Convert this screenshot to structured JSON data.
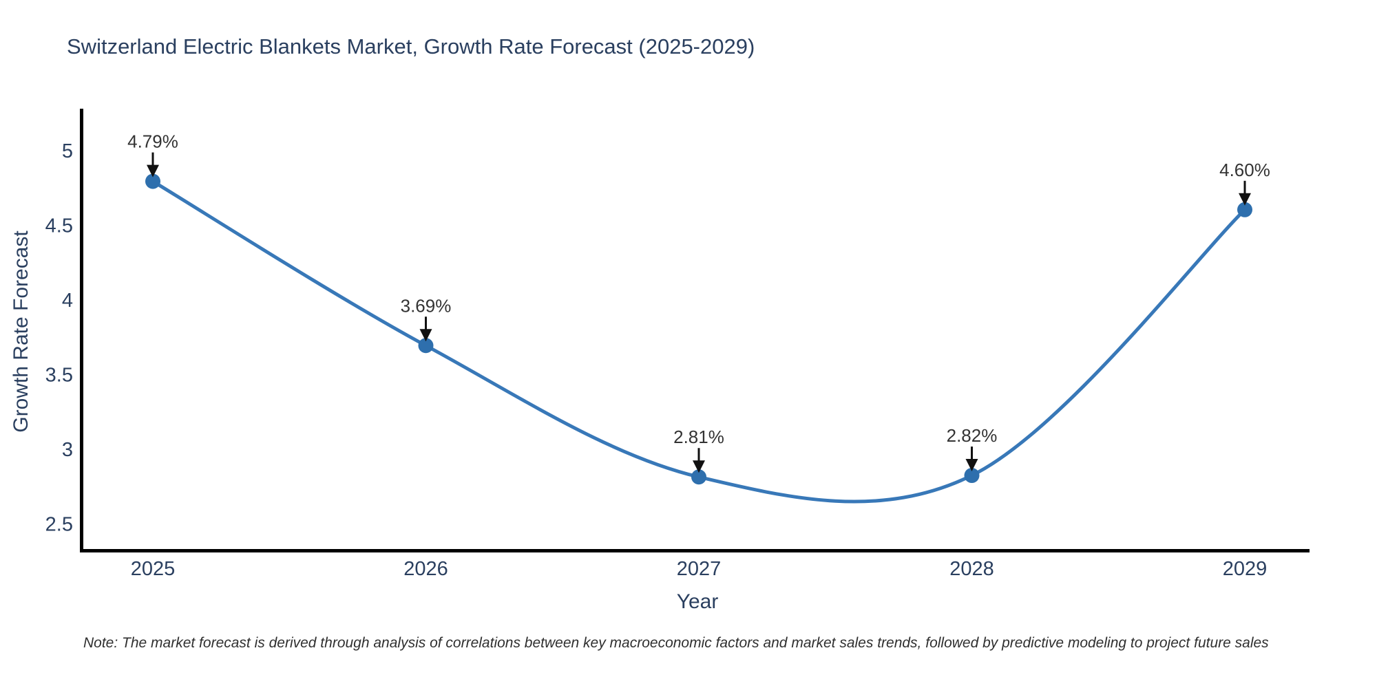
{
  "chart_data": {
    "type": "line",
    "line_shape": "spline",
    "title": "Switzerland Electric Blankets Market, Growth Rate Forecast (2025-2029)",
    "xlabel": "Year",
    "ylabel": "Growth Rate Forecast",
    "x": [
      2025,
      2026,
      2027,
      2028,
      2029
    ],
    "xtick_labels": [
      "2025",
      "2026",
      "2027",
      "2028",
      "2029"
    ],
    "series": [
      {
        "name": "Growth Rate Forecast",
        "values": [
          4.79,
          3.69,
          2.81,
          2.82,
          4.6
        ]
      }
    ],
    "point_labels": [
      "4.79%",
      "3.69%",
      "2.81%",
      "2.82%",
      "4.60%"
    ],
    "yticks": [
      5,
      4.5,
      4,
      3.5,
      3,
      2.5
    ],
    "ytick_labels": [
      "5",
      "4.5",
      "4",
      "3.5",
      "3",
      "2.5"
    ],
    "ylim": [
      2.32,
      5.28
    ],
    "grid": false,
    "legend": false,
    "annotation_arrows": true,
    "note": "Note: The market forecast is derived through analysis of correlations between key macroeconomic factors and market sales trends, followed by predictive modeling to project future sales",
    "colors": {
      "line": "#3878b8",
      "marker": "#2e6fad",
      "axis": "#000000",
      "text": "#2a3f5f",
      "annotation": "#333333",
      "arrow": "#111111",
      "background": "#ffffff"
    }
  }
}
